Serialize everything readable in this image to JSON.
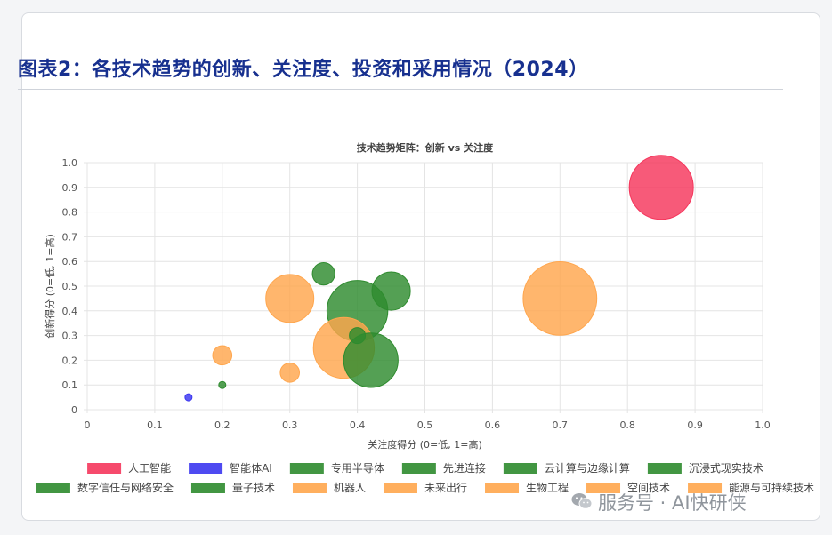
{
  "page": {
    "title": "图表2：各技术趋势的创新、关注度、投资和采用情况（2024）",
    "watermark": "服务号 · AI快研侠"
  },
  "chart_data": {
    "type": "bubble",
    "title": "技术趋势矩阵：创新 vs 关注度",
    "xlabel": "关注度得分 (0=低, 1=高)",
    "ylabel": "创新得分 (0=低, 1=高)",
    "xlim": [
      0,
      1.0
    ],
    "ylim": [
      0,
      1.0
    ],
    "x_ticks": [
      "0",
      "0.1",
      "0.2",
      "0.3",
      "0.4",
      "0.5",
      "0.6",
      "0.7",
      "0.8",
      "0.9",
      "1.0"
    ],
    "y_ticks": [
      "0",
      "0.1",
      "0.2",
      "0.3",
      "0.4",
      "0.5",
      "0.6",
      "0.7",
      "0.8",
      "0.9",
      "1.0"
    ],
    "grid": true,
    "legend_position": "bottom",
    "series": [
      {
        "name": "人工智能",
        "color": "#f5365c",
        "x": 0.85,
        "y": 0.9,
        "size": 10
      },
      {
        "name": "智能体AI",
        "color": "#3b36f0",
        "x": 0.15,
        "y": 0.05,
        "size": 1
      },
      {
        "name": "专用半导体",
        "color": "#2e8b2e",
        "x": 0.42,
        "y": 0.2,
        "size": 8.5
      },
      {
        "name": "先进连接",
        "color": "#2e8b2e",
        "x": 0.4,
        "y": 0.4,
        "size": 9.5
      },
      {
        "name": "云计算与边缘计算",
        "color": "#2e8b2e",
        "x": 0.45,
        "y": 0.48,
        "size": 6
      },
      {
        "name": "沉浸式现实技术",
        "color": "#2e8b2e",
        "x": 0.35,
        "y": 0.55,
        "size": 3.5
      },
      {
        "name": "数字信任与网络安全",
        "color": "#2e8b2e",
        "x": 0.4,
        "y": 0.3,
        "size": 2.5
      },
      {
        "name": "量子技术",
        "color": "#2e8b2e",
        "x": 0.2,
        "y": 0.1,
        "size": 1
      },
      {
        "name": "机器人",
        "color": "#ffa64d",
        "x": 0.3,
        "y": 0.15,
        "size": 3
      },
      {
        "name": "未来出行",
        "color": "#ffa64d",
        "x": 0.2,
        "y": 0.22,
        "size": 3
      },
      {
        "name": "生物工程",
        "color": "#ffa64d",
        "x": 0.3,
        "y": 0.45,
        "size": 7.5
      },
      {
        "name": "空间技术",
        "color": "#ffa64d",
        "x": 0.38,
        "y": 0.25,
        "size": 9.5
      },
      {
        "name": "能源与可持续技术",
        "color": "#ffa64d",
        "x": 0.7,
        "y": 0.45,
        "size": 11.5
      }
    ]
  }
}
